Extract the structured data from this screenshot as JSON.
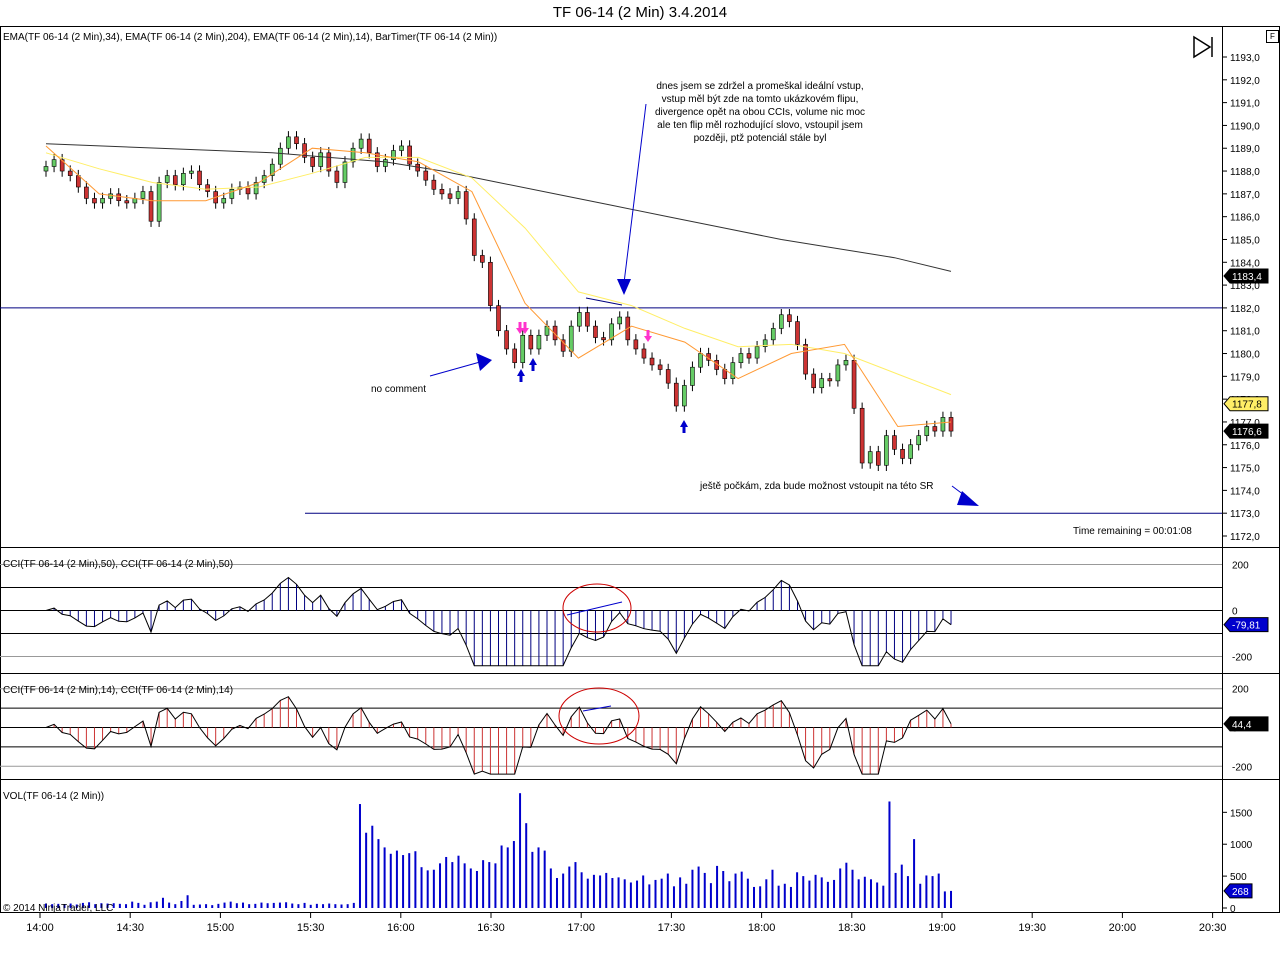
{
  "window": {
    "title": "TF 06-14 (2 Min)  3.4.2014",
    "corner_button": "F"
  },
  "panels": {
    "price": {
      "indicator_label": "EMA(TF 06-14 (2 Min),34), EMA(TF 06-14 (2 Min),204), EMA(TF 06-14 (2 Min),14), BarTimer(TF 06-14 (2 Min))",
      "ticks": [
        "1193,0",
        "1192,0",
        "1191,0",
        "1190,0",
        "1189,0",
        "1188,0",
        "1187,0",
        "1186,0",
        "1185,0",
        "1184,0",
        "1183,0",
        "1182,0",
        "1181,0",
        "1180,0",
        "1179,0",
        "1178,0",
        "1177,0",
        "1176,0",
        "1175,0",
        "1174,0",
        "1173,0",
        "1172,0"
      ],
      "badges": [
        "1183,4",
        "1177,8",
        "1176,6"
      ],
      "time_remaining": "Time remaining = 00:01:08"
    },
    "cci50": {
      "indicator_label": "CCI(TF 06-14 (2 Min),50), CCI(TF 06-14 (2 Min),50)",
      "ticks": [
        "200",
        "0",
        "-200"
      ],
      "badge": "-79,81"
    },
    "cci14": {
      "indicator_label": "CCI(TF 06-14 (2 Min),14), CCI(TF 06-14 (2 Min),14)",
      "ticks": [
        "200",
        "0",
        "-200"
      ],
      "badge": "44,4"
    },
    "volume": {
      "indicator_label": "VOL(TF 06-14 (2 Min))",
      "ticks": [
        "1500",
        "1000",
        "500",
        "0"
      ],
      "badge": "268",
      "copyright": "© 2014 NinjaTrader, LLC"
    }
  },
  "annotations": {
    "note_top": [
      "dnes jsem se zdržel a promeškal ideální vstup,",
      "vstup měl být zde na tomto ukázkovém flipu,",
      "divergence opět na obou CCIs, volume nic moc",
      "ale ten flip měl rozhodující slovo, vstoupil jsem",
      "později, ptž potenciál stále byl"
    ],
    "note_left": "no comment",
    "note_bottom": "ještě počkám, zda bude možnost vstoupit na této SR"
  },
  "time_axis": [
    "14:00",
    "14:30",
    "15:00",
    "15:30",
    "16:00",
    "16:30",
    "17:00",
    "17:30",
    "18:00",
    "18:30",
    "19:00",
    "19:30",
    "20:00",
    "20:30"
  ],
  "colors": {
    "up": "#66cc66",
    "down": "#cc3333",
    "ema204": "#333333",
    "ema34": "#ffee66",
    "ema14": "#ff9933",
    "line": "#000080",
    "cci14": "#cc3333",
    "arrow": "#0000cc",
    "magenta": "#ff33cc"
  },
  "chart_data": [
    {
      "type": "candlestick",
      "y_range": [
        1171.5,
        1193.4
      ],
      "x_time_range": [
        "13:58",
        "20:34"
      ],
      "sr_levels": [
        1182.0,
        1173.0
      ],
      "ohlc_close_series": [
        1188.2,
        1188.5,
        1188.0,
        1187.8,
        1187.3,
        1186.8,
        1186.6,
        1186.8,
        1187.0,
        1186.7,
        1186.6,
        1186.8,
        1187.1,
        1185.8,
        1187.5,
        1187.8,
        1187.4,
        1187.9,
        1188.0,
        1187.4,
        1187.1,
        1186.6,
        1186.8,
        1187.2,
        1187.3,
        1187.0,
        1187.5,
        1187.8,
        1188.3,
        1189.0,
        1189.5,
        1189.2,
        1188.6,
        1188.2,
        1188.8,
        1188.0,
        1187.5,
        1188.4,
        1189.0,
        1189.4,
        1188.8,
        1188.2,
        1188.5,
        1188.9,
        1189.1,
        1188.3,
        1188.0,
        1187.6,
        1187.2,
        1187.0,
        1186.8,
        1187.1,
        1185.9,
        1184.3,
        1184.0,
        1182.1,
        1181.0,
        1180.2,
        1179.6,
        1180.8,
        1180.2,
        1180.8,
        1181.2,
        1180.6,
        1180.1,
        1181.2,
        1181.8,
        1181.2,
        1180.7,
        1180.6,
        1181.3,
        1181.6,
        1180.6,
        1180.2,
        1179.8,
        1179.5,
        1179.3,
        1178.7,
        1177.7,
        1178.6,
        1179.4,
        1180.0,
        1179.7,
        1179.3,
        1178.9,
        1179.6,
        1180.0,
        1179.8,
        1180.3,
        1180.6,
        1181.1,
        1181.7,
        1181.4,
        1180.4,
        1179.1,
        1178.5,
        1178.9,
        1178.8,
        1179.5,
        1179.7,
        1177.6,
        1175.2,
        1175.7,
        1175.1,
        1176.4,
        1175.8,
        1175.4,
        1176.0,
        1176.4,
        1176.8,
        1176.6,
        1177.2,
        1176.6
      ],
      "ema204": [
        1189.2,
        1189.1,
        1189.0,
        1188.9,
        1188.8,
        1188.6,
        1188.4,
        1188.0,
        1187.5,
        1187.0,
        1186.5,
        1186.0,
        1185.5,
        1185.0,
        1184.6,
        1184.2,
        1183.6
      ],
      "ema34": [
        1188.8,
        1188.1,
        1187.5,
        1187.2,
        1187.3,
        1187.9,
        1188.6,
        1188.6,
        1187.7,
        1185.5,
        1182.7,
        1182.1,
        1181.1,
        1180.3,
        1180.4,
        1180.0,
        1179.1,
        1178.2
      ],
      "ema14": [
        1189.1,
        1187.0,
        1186.7,
        1186.7,
        1187.5,
        1189.0,
        1188.8,
        1188.4,
        1187.1,
        1182.2,
        1179.8,
        1181.2,
        1180.5,
        1178.9,
        1180.0,
        1180.4,
        1176.8,
        1177.0
      ]
    },
    {
      "type": "histogram",
      "series_name": "CCI50",
      "y_range": [
        -250,
        250
      ],
      "levels": [
        200,
        100,
        0,
        -100,
        -200
      ]
    },
    {
      "type": "histogram",
      "series_name": "CCI14",
      "y_range": [
        -250,
        250
      ],
      "levels": [
        200,
        100,
        0,
        -100,
        -200
      ]
    },
    {
      "type": "bar",
      "series_name": "Volume",
      "y_range": [
        0,
        1850
      ],
      "values": [
        70,
        60,
        65,
        55,
        70,
        55,
        80,
        90,
        60,
        75,
        70,
        75,
        65,
        60,
        100,
        80,
        50,
        90,
        100,
        160,
        85,
        60,
        110,
        200,
        50,
        55,
        60,
        45,
        65,
        85,
        100,
        75,
        85,
        60,
        65,
        85,
        75,
        80,
        85,
        90,
        70,
        60,
        80,
        50,
        65,
        60,
        70,
        60,
        55,
        60,
        80,
        1630,
        1180,
        1290,
        1080,
        950,
        850,
        900,
        830,
        860,
        890,
        640,
        590,
        600,
        700,
        800,
        720,
        820,
        700,
        620,
        580,
        750,
        720,
        700,
        980,
        950,
        1050,
        1800,
        1330,
        880,
        950,
        900,
        620,
        470,
        540,
        650,
        720,
        560,
        460,
        520,
        510,
        550,
        470,
        480,
        450,
        400,
        430,
        510,
        370,
        440,
        460,
        540,
        340,
        480,
        380,
        600,
        650,
        550,
        390,
        660,
        580,
        420,
        540,
        570,
        460,
        330,
        340,
        450,
        600,
        350,
        380,
        330,
        560,
        500,
        430,
        520,
        480,
        410,
        440,
        620,
        710,
        600,
        450,
        490,
        450,
        400,
        350,
        1670,
        550,
        680,
        500,
        1080,
        380,
        510,
        500,
        540,
        260,
        268
      ]
    }
  ]
}
